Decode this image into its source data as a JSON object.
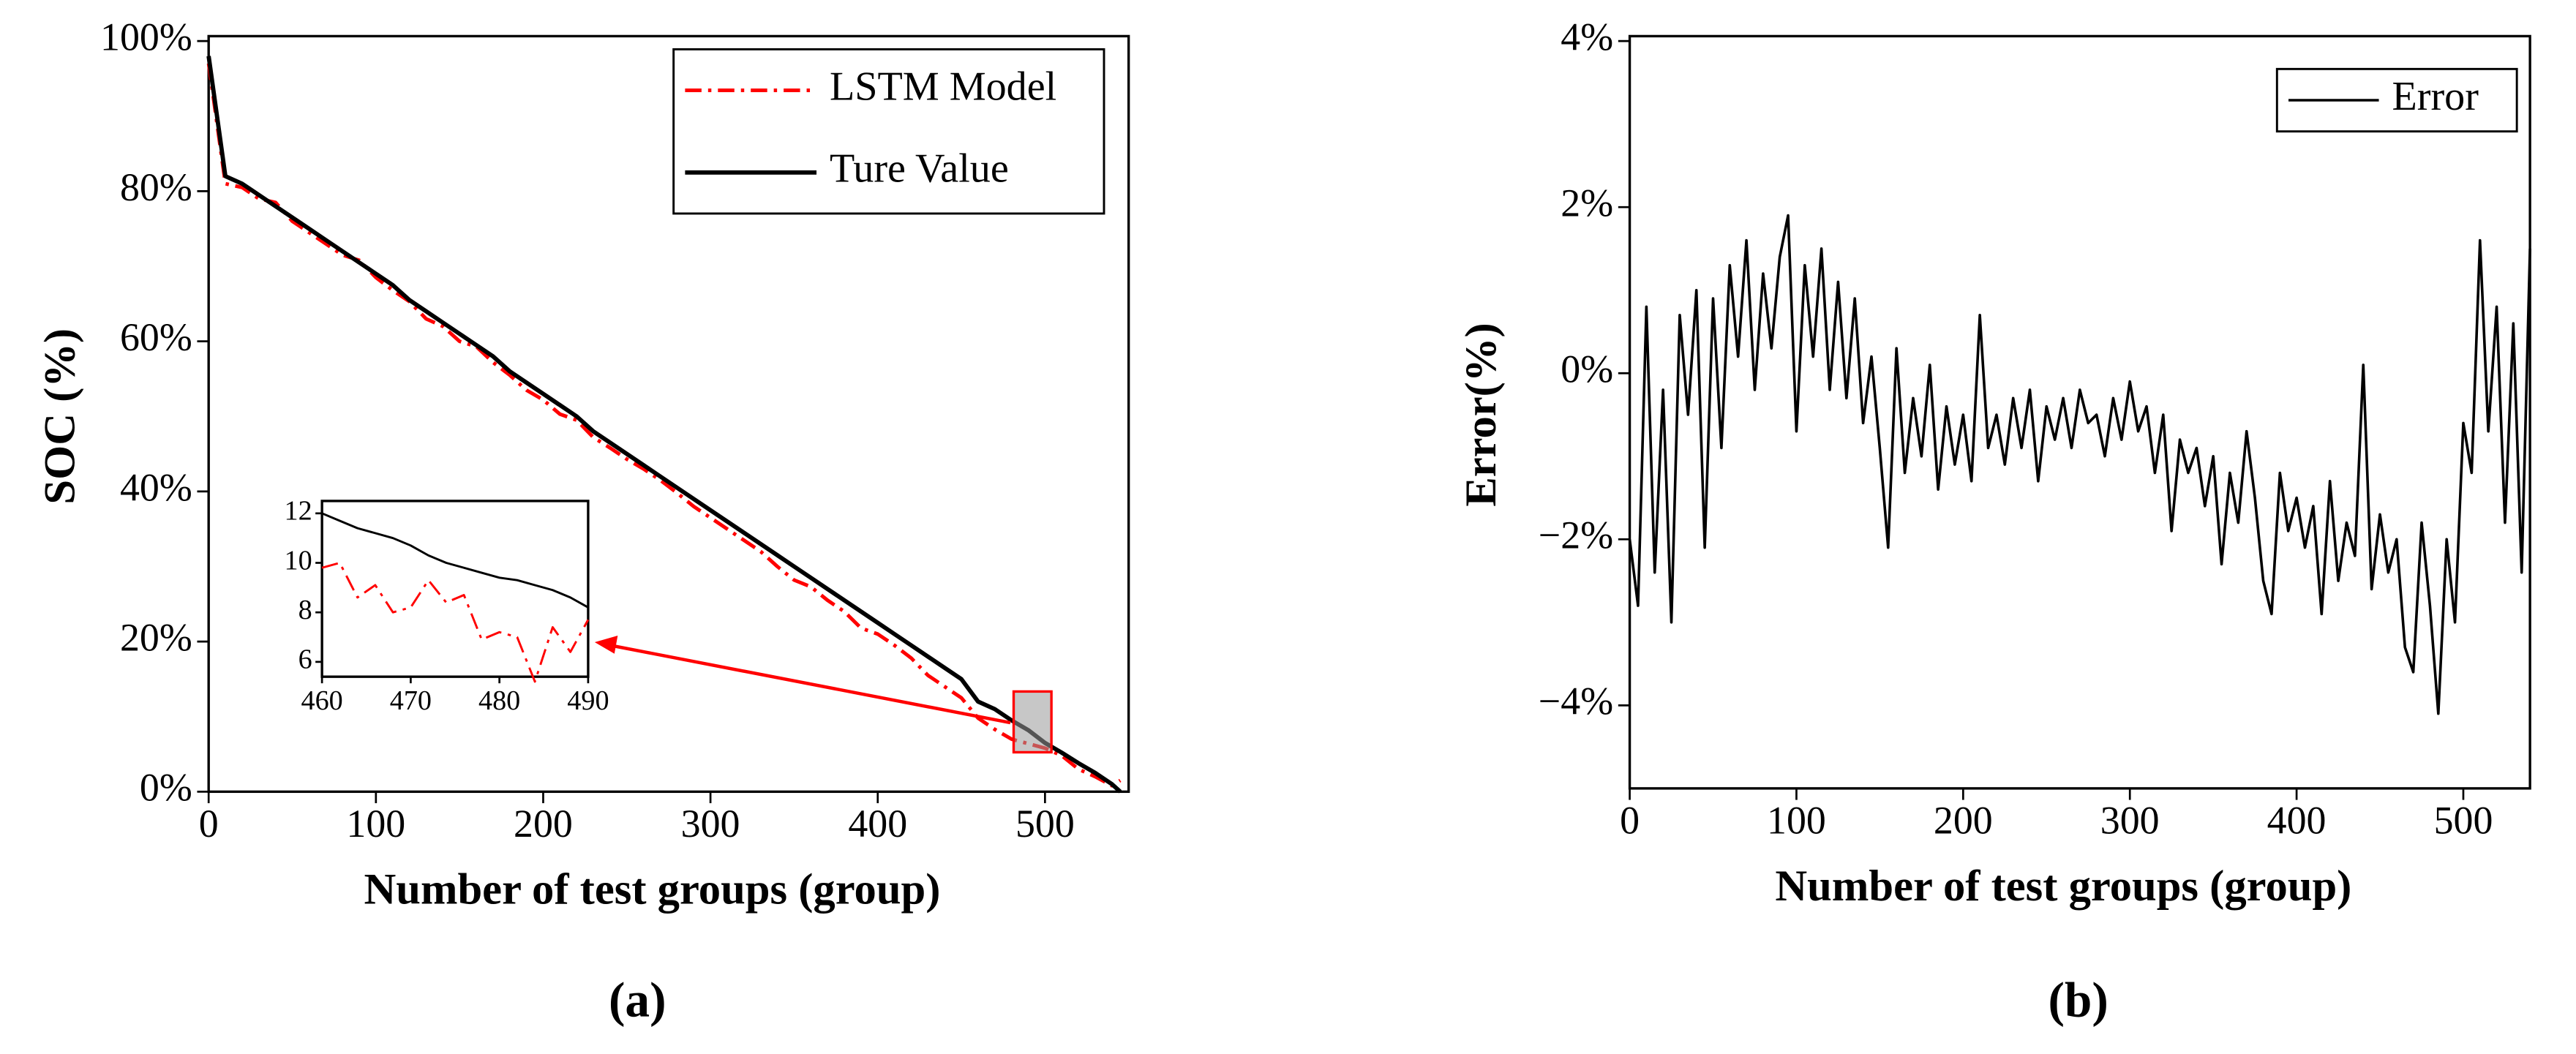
{
  "chart_data": [
    {
      "type": "line",
      "caption": "(a)",
      "xlabel": "Number of test groups (group)",
      "ylabel": "SOC (%)",
      "x": [
        0,
        5,
        10,
        20,
        30,
        40,
        50,
        60,
        70,
        80,
        90,
        100,
        110,
        120,
        130,
        140,
        150,
        160,
        170,
        180,
        190,
        200,
        210,
        220,
        230,
        240,
        250,
        260,
        270,
        280,
        290,
        300,
        310,
        320,
        330,
        340,
        350,
        360,
        370,
        380,
        390,
        400,
        410,
        420,
        430,
        440,
        450,
        460,
        470,
        480,
        490,
        500,
        510,
        520,
        530,
        540,
        545
      ],
      "series": [
        {
          "name": "LSTM Model",
          "color": "#ff0000",
          "linestyle": "dashdot",
          "values": [
            97,
            89,
            81,
            80.5,
            79,
            78.5,
            76,
            74.5,
            73,
            71.5,
            70.8,
            68.5,
            66.8,
            65.3,
            63,
            62,
            60,
            59.3,
            57.2,
            55.5,
            53.5,
            52.2,
            50.3,
            49.5,
            47.2,
            45.8,
            44.3,
            43,
            41.5,
            39.8,
            38,
            36.5,
            35,
            33.5,
            32,
            30,
            28.2,
            27.3,
            25.5,
            24,
            21.8,
            21,
            19.5,
            17.8,
            15.5,
            14,
            12.5,
            9.8,
            8.3,
            7,
            6.4,
            5.8,
            4.8,
            3,
            2,
            0.8,
            1.5
          ]
        },
        {
          "name": "Ture Value",
          "color": "#000000",
          "linestyle": "solid",
          "values": [
            98,
            90,
            82,
            81,
            79.5,
            78,
            76.5,
            75,
            73.5,
            72,
            70.5,
            69,
            67.5,
            65.5,
            64,
            62.5,
            61,
            59.5,
            58,
            56,
            54.5,
            53,
            51.5,
            50,
            48,
            46.5,
            45,
            43.5,
            42,
            40.5,
            39,
            37.5,
            36,
            34.5,
            33,
            31.5,
            30,
            28.5,
            27,
            25.5,
            24,
            22.5,
            21,
            19.5,
            18,
            16.5,
            15,
            12,
            11,
            9.5,
            8.2,
            6.5,
            5.2,
            3.8,
            2.5,
            1,
            0
          ]
        }
      ],
      "xlim": [
        0,
        550
      ],
      "xticks": [
        0,
        100,
        200,
        300,
        400,
        500
      ],
      "ylim": [
        0,
        100
      ],
      "yticks": [
        {
          "value": 0,
          "label": "0%"
        },
        {
          "value": 20,
          "label": "20%"
        },
        {
          "value": 40,
          "label": "40%"
        },
        {
          "value": 60,
          "label": "60%"
        },
        {
          "value": 80,
          "label": "80%"
        },
        {
          "value": 100,
          "label": "100%"
        }
      ],
      "legend": "upper right",
      "grid": false
    },
    {
      "type": "line",
      "x": [
        460,
        462,
        464,
        466,
        468,
        470,
        472,
        474,
        476,
        478,
        480,
        482,
        484,
        486,
        488,
        490
      ],
      "series": [
        {
          "color": "#ff0000",
          "linestyle": "dashdot",
          "values": [
            9.8,
            10.0,
            8.6,
            9.1,
            8.0,
            8.2,
            9.3,
            8.4,
            8.7,
            6.9,
            7.2,
            7.0,
            5.2,
            7.4,
            6.4,
            7.7
          ]
        },
        {
          "color": "#000000",
          "linestyle": "solid",
          "values": [
            12.0,
            11.7,
            11.4,
            11.2,
            11.0,
            10.7,
            10.3,
            10.0,
            9.8,
            9.6,
            9.4,
            9.3,
            9.1,
            8.9,
            8.6,
            8.2
          ]
        }
      ],
      "xlim": [
        460,
        490
      ],
      "xticks": [
        460,
        470,
        480,
        490
      ],
      "ylim": [
        5.4,
        12.5
      ],
      "yticks": [
        6,
        8,
        10,
        12
      ],
      "grid": false
    },
    {
      "type": "line",
      "caption": "(b)",
      "xlabel": "Number of test groups (group)",
      "ylabel": "Error(%)",
      "x": [
        0,
        5,
        10,
        15,
        20,
        25,
        30,
        35,
        40,
        45,
        50,
        55,
        60,
        65,
        70,
        75,
        80,
        85,
        90,
        95,
        100,
        105,
        110,
        115,
        120,
        125,
        130,
        135,
        140,
        145,
        150,
        155,
        160,
        165,
        170,
        175,
        180,
        185,
        190,
        195,
        200,
        205,
        210,
        215,
        220,
        225,
        230,
        235,
        240,
        245,
        250,
        255,
        260,
        265,
        270,
        275,
        280,
        285,
        290,
        295,
        300,
        305,
        310,
        315,
        320,
        325,
        330,
        335,
        340,
        345,
        350,
        355,
        360,
        365,
        370,
        375,
        380,
        385,
        390,
        395,
        400,
        405,
        410,
        415,
        420,
        425,
        430,
        435,
        440,
        445,
        450,
        455,
        460,
        465,
        470,
        475,
        480,
        485,
        490,
        495,
        500,
        505,
        510,
        515,
        520,
        525,
        530,
        535,
        540
      ],
      "series": [
        {
          "name": "Error",
          "color": "#000000",
          "linestyle": "solid",
          "values": [
            -2.0,
            -2.8,
            0.8,
            -2.4,
            -0.2,
            -3.0,
            0.7,
            -0.5,
            1.0,
            -2.1,
            0.9,
            -0.9,
            1.3,
            0.2,
            1.6,
            -0.2,
            1.2,
            0.3,
            1.4,
            1.9,
            -0.7,
            1.3,
            0.2,
            1.5,
            -0.2,
            1.1,
            -0.3,
            0.9,
            -0.6,
            0.2,
            -0.9,
            -2.1,
            0.3,
            -1.2,
            -0.3,
            -1.0,
            0.1,
            -1.4,
            -0.4,
            -1.1,
            -0.5,
            -1.3,
            0.7,
            -0.9,
            -0.5,
            -1.1,
            -0.3,
            -0.9,
            -0.2,
            -1.3,
            -0.4,
            -0.8,
            -0.3,
            -0.9,
            -0.2,
            -0.6,
            -0.5,
            -1.0,
            -0.3,
            -0.8,
            -0.1,
            -0.7,
            -0.4,
            -1.2,
            -0.5,
            -1.9,
            -0.8,
            -1.2,
            -0.9,
            -1.6,
            -1.0,
            -2.3,
            -1.2,
            -1.8,
            -0.7,
            -1.5,
            -2.5,
            -2.9,
            -1.2,
            -1.9,
            -1.5,
            -2.1,
            -1.6,
            -2.9,
            -1.3,
            -2.5,
            -1.8,
            -2.2,
            0.1,
            -2.6,
            -1.7,
            -2.4,
            -2.0,
            -3.3,
            -3.6,
            -1.8,
            -2.8,
            -4.1,
            -2.0,
            -3.0,
            -0.6,
            -1.2,
            1.6,
            -0.7,
            0.8,
            -1.8,
            0.6,
            -2.4,
            1.5
          ]
        }
      ],
      "xlim": [
        0,
        540
      ],
      "xticks": [
        0,
        100,
        200,
        300,
        400,
        500
      ],
      "ylim": [
        -5,
        4
      ],
      "yticks": [
        {
          "value": -4,
          "label": "−4%"
        },
        {
          "value": -2,
          "label": "−2%"
        },
        {
          "value": 0,
          "label": "0%"
        },
        {
          "value": 2,
          "label": "2%"
        },
        {
          "value": 4,
          "label": "4%"
        }
      ],
      "legend": "upper right",
      "grid": false
    }
  ]
}
